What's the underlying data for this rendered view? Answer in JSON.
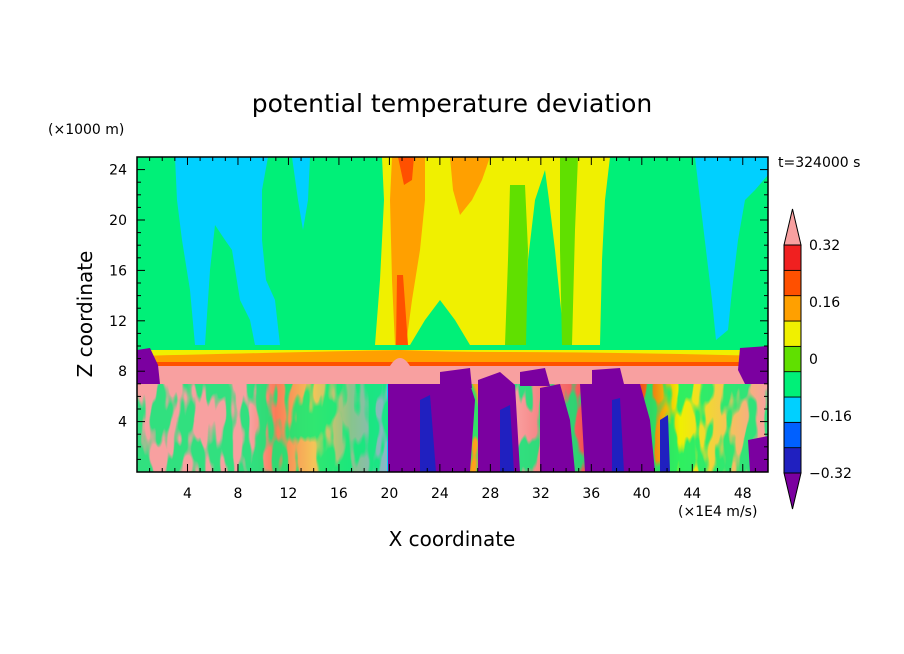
{
  "chart_data": {
    "type": "heatmap",
    "title": "potential temperature deviation",
    "xlabel": "X coordinate",
    "ylabel": "Z coordinate",
    "x_unit": "(×1E4 m/s)",
    "y_unit": "(×1000 m)",
    "time_label": "t=324000 s",
    "xlim": [
      0,
      50
    ],
    "ylim": [
      0,
      25
    ],
    "x_ticks": [
      4,
      8,
      12,
      16,
      20,
      24,
      28,
      32,
      36,
      40,
      44,
      48
    ],
    "x_tick_labels": [
      "4",
      "8",
      "12",
      "16",
      "20",
      "24",
      "28",
      "32",
      "36",
      "40",
      "44",
      "48"
    ],
    "y_ticks": [
      4,
      8,
      12,
      16,
      20,
      24
    ],
    "y_tick_labels": [
      "4",
      "8",
      "12",
      "16",
      "20",
      "24"
    ],
    "colorbar": {
      "levels": [
        -0.4,
        -0.32,
        -0.24,
        -0.16,
        -0.08,
        0,
        0.08,
        0.16,
        0.24,
        0.32,
        0.4
      ],
      "tick_values": [
        -0.32,
        -0.16,
        0,
        0.16,
        0.32
      ],
      "tick_labels": [
        "−0.32",
        "−0.16",
        "0",
        "0.16",
        "0.32"
      ],
      "colors": [
        "#7b00a0",
        "#2020c0",
        "#0060ff",
        "#00d0ff",
        "#00f078",
        "#60e000",
        "#f0f000",
        "#ffa000",
        "#ff5000",
        "#f02020",
        "#f8a0a0"
      ],
      "extend": "both"
    },
    "regions": [
      {
        "name": "upper-background",
        "value": -0.04,
        "x": [
          0,
          50
        ],
        "y": [
          9.7,
          25
        ]
      },
      {
        "name": "cyan-column-left",
        "value": -0.12,
        "x": [
          3,
          12.5
        ],
        "y": [
          10.5,
          25
        ]
      },
      {
        "name": "cyan-column-right",
        "value": -0.12,
        "x": [
          44,
          50
        ],
        "y": [
          12,
          25
        ]
      },
      {
        "name": "warm-plume-center",
        "value": 0.12,
        "x": [
          19,
          37
        ],
        "y": [
          9.5,
          25
        ]
      },
      {
        "name": "orange-core",
        "value": 0.2,
        "x": [
          20,
          22.5
        ],
        "y": [
          9.5,
          25
        ]
      },
      {
        "name": "tropopause-warm-band",
        "value": 0.36,
        "x": [
          0,
          50
        ],
        "y": [
          7,
          9
        ]
      },
      {
        "name": "lower-turbulent-layer",
        "value": 0.0,
        "x": [
          0,
          50
        ],
        "y": [
          0,
          7
        ]
      },
      {
        "name": "cold-patch-center",
        "value": -0.36,
        "x": [
          20,
          40
        ],
        "y": [
          0,
          8
        ]
      }
    ]
  }
}
